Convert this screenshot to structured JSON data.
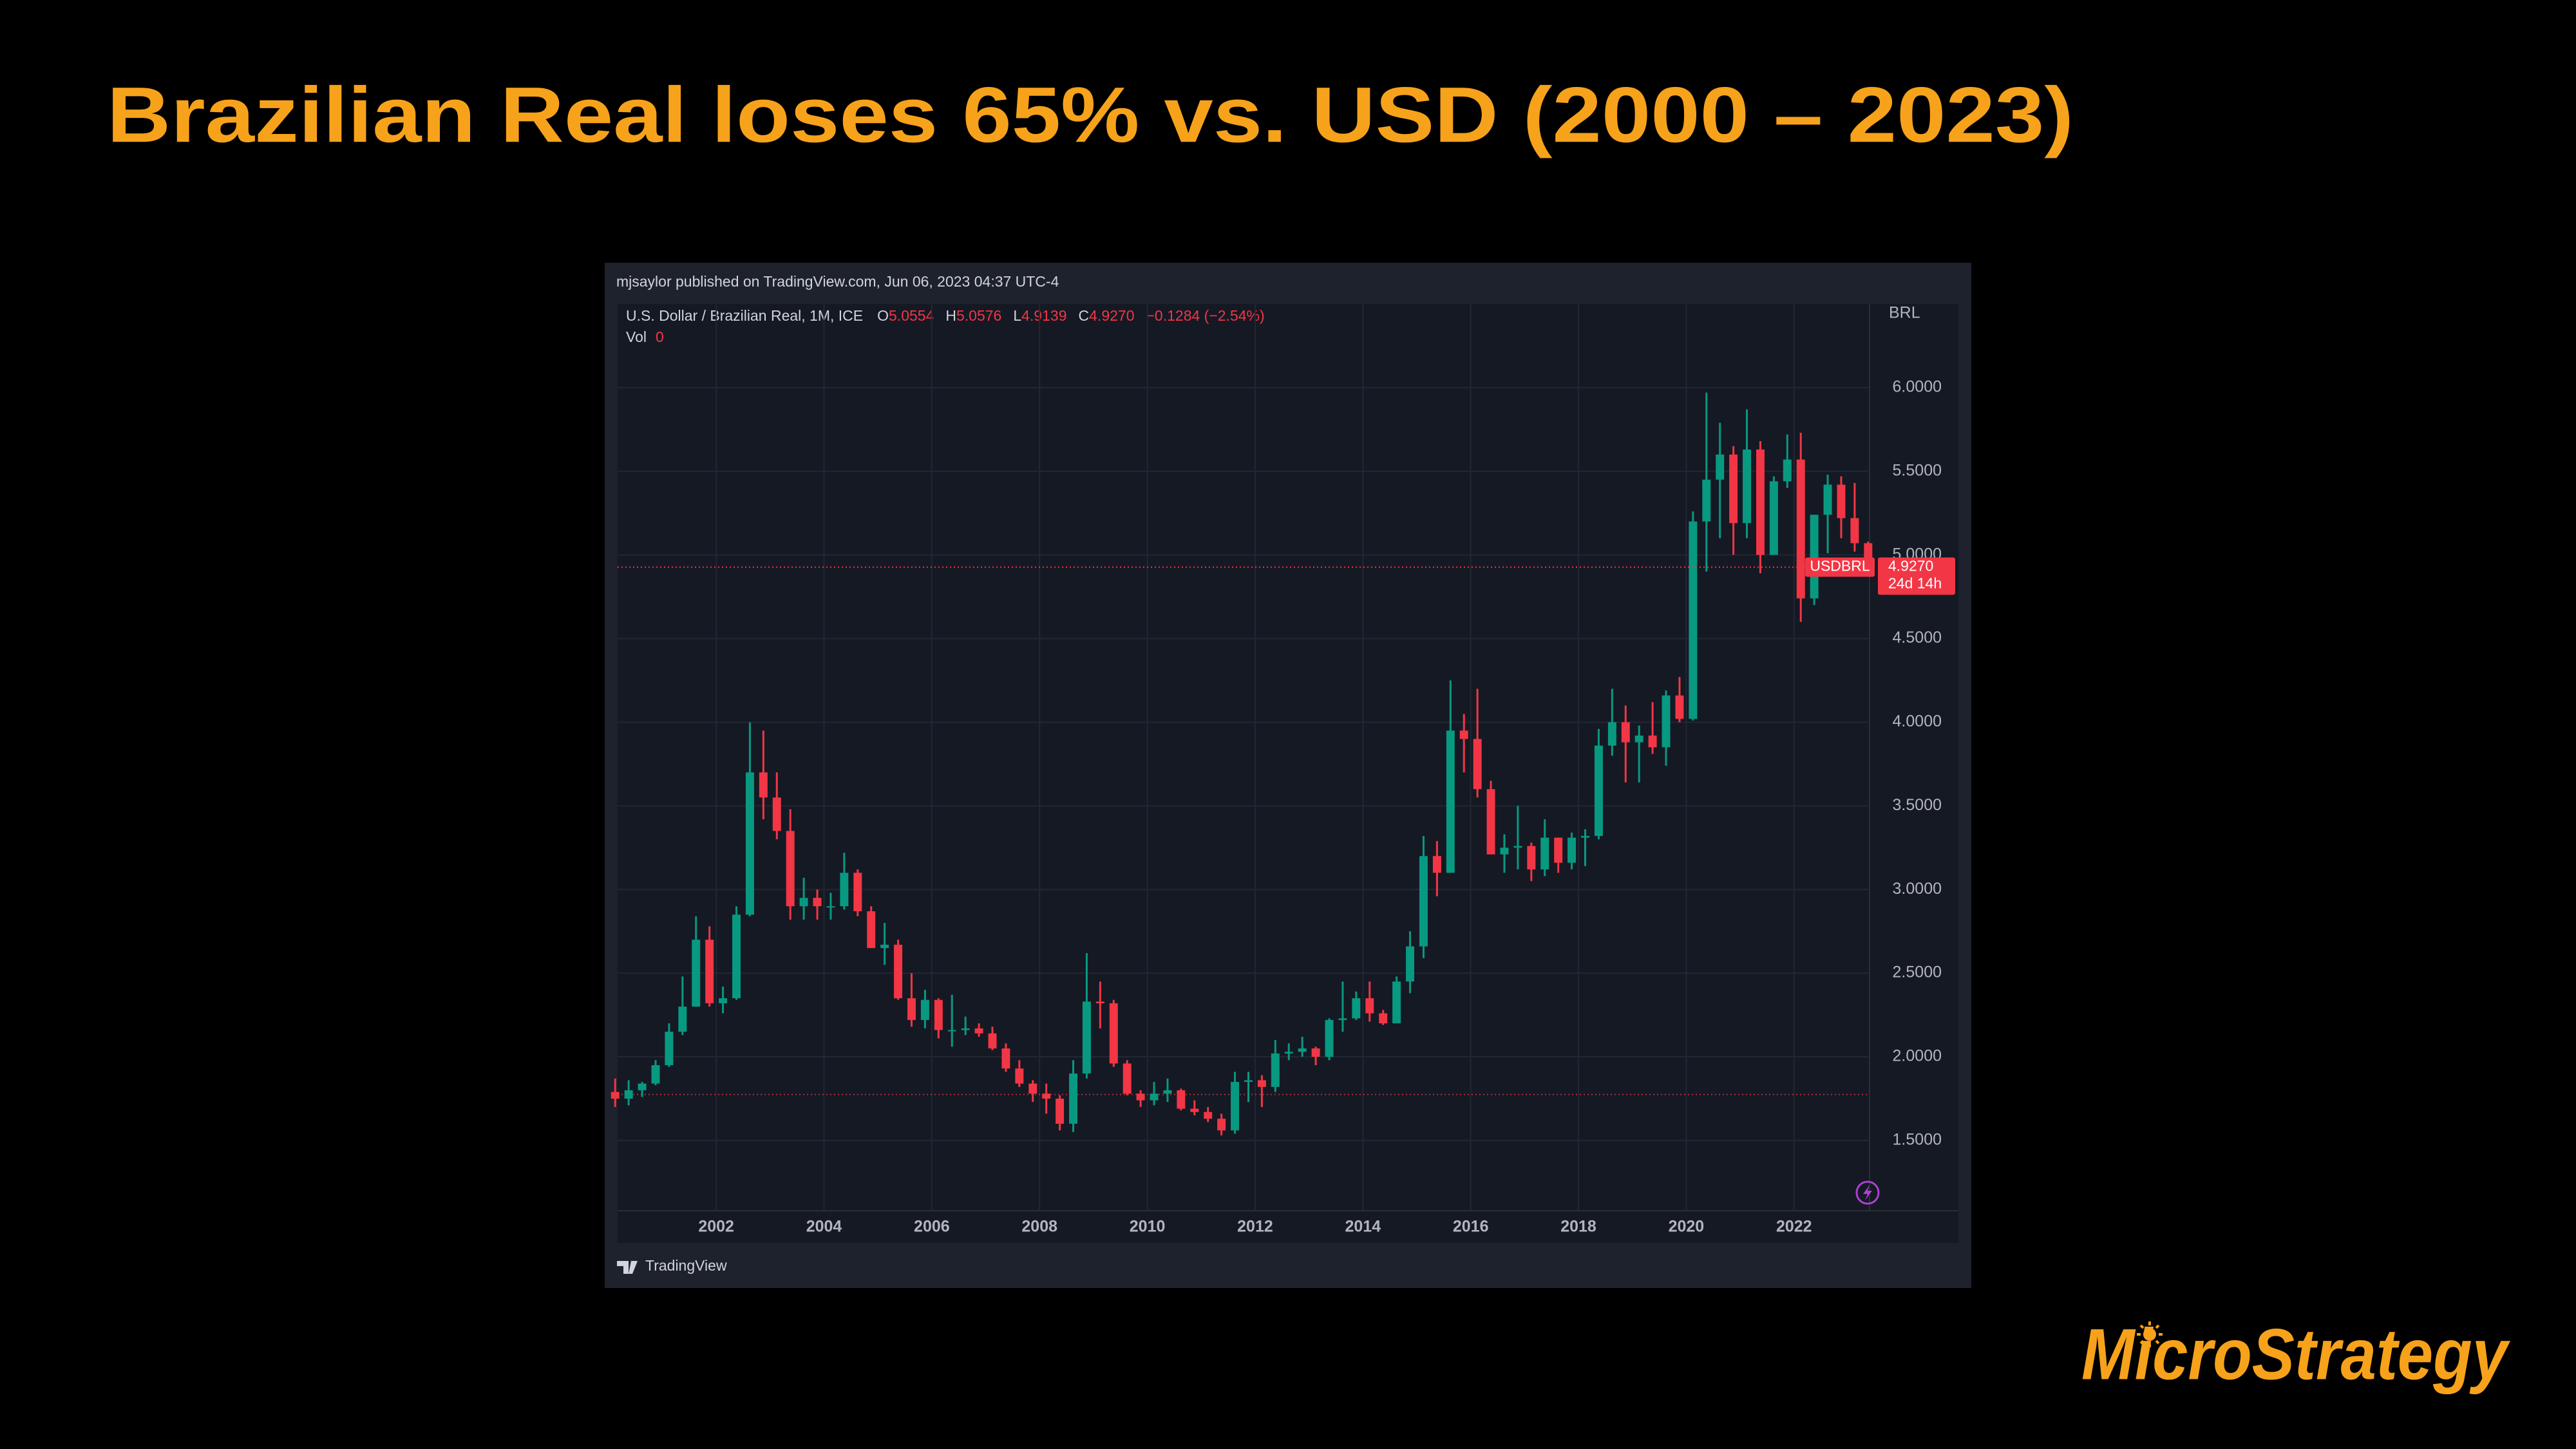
{
  "chart_data": {
    "type": "candlestick",
    "title": "Brazilian Real loses 65% vs. USD (2000 – 2023)",
    "attribution": "mjsaylor published on TradingView.com, Jun 06, 2023 04:37 UTC-4",
    "instrument": "U.S. Dollar / Brazilian Real, 1M, ICE",
    "ohlc_legend": [
      {
        "label": "O",
        "value": "5.0554"
      },
      {
        "label": "H",
        "value": "5.0576"
      },
      {
        "label": "L",
        "value": "4.9139"
      },
      {
        "label": "C",
        "value": "4.9270"
      }
    ],
    "change": "−0.1284 (−2.54%)",
    "volume_label": "Vol",
    "volume": "0",
    "currency": "BRL",
    "symbol": "USDBRL",
    "last_price": 4.927,
    "last_price_label": "4.9270",
    "countdown": "24d 14h",
    "reference_line": 1.775,
    "brand": "TradingView",
    "up_color": "#089981",
    "down_color": "#f23645",
    "x": [
      2000.125,
      2000.375,
      2000.625,
      2000.875,
      2001.125,
      2001.375,
      2001.625,
      2001.875,
      2002.125,
      2002.375,
      2002.625,
      2002.875,
      2003.125,
      2003.375,
      2003.625,
      2003.875,
      2004.125,
      2004.375,
      2004.625,
      2004.875,
      2005.125,
      2005.375,
      2005.625,
      2005.875,
      2006.125,
      2006.375,
      2006.625,
      2006.875,
      2007.125,
      2007.375,
      2007.625,
      2007.875,
      2008.125,
      2008.375,
      2008.625,
      2008.875,
      2009.125,
      2009.375,
      2009.625,
      2009.875,
      2010.125,
      2010.375,
      2010.625,
      2010.875,
      2011.125,
      2011.375,
      2011.625,
      2011.875,
      2012.125,
      2012.375,
      2012.625,
      2012.875,
      2013.125,
      2013.375,
      2013.625,
      2013.875,
      2014.125,
      2014.375,
      2014.625,
      2014.875,
      2015.125,
      2015.375,
      2015.625,
      2015.875,
      2016.125,
      2016.375,
      2016.625,
      2016.875,
      2017.125,
      2017.375,
      2017.625,
      2017.875,
      2018.125,
      2018.375,
      2018.625,
      2018.875,
      2019.125,
      2019.375,
      2019.625,
      2019.875,
      2020.125,
      2020.375,
      2020.625,
      2020.875,
      2021.125,
      2021.375,
      2021.625,
      2021.875,
      2022.125,
      2022.375,
      2022.625,
      2022.875,
      2023.125,
      2023.375
    ],
    "open": [
      1.79,
      1.75,
      1.8,
      1.84,
      1.95,
      2.15,
      2.3,
      2.7,
      2.32,
      2.35,
      2.85,
      3.7,
      3.55,
      3.35,
      2.9,
      2.95,
      2.9,
      2.9,
      3.1,
      2.87,
      2.65,
      2.67,
      2.35,
      2.22,
      2.34,
      2.16,
      2.16,
      2.17,
      2.14,
      2.05,
      1.93,
      1.84,
      1.78,
      1.75,
      1.6,
      1.9,
      2.33,
      2.32,
      1.96,
      1.78,
      1.74,
      1.78,
      1.8,
      1.69,
      1.67,
      1.63,
      1.56,
      1.85,
      1.86,
      1.82,
      2.02,
      2.03,
      2.05,
      2.0,
      2.22,
      2.23,
      2.35,
      2.26,
      2.2,
      2.45,
      2.66,
      3.2,
      3.1,
      3.95,
      3.9,
      3.6,
      3.21,
      3.25,
      3.26,
      3.12,
      3.31,
      3.16,
      3.31,
      3.32,
      3.86,
      4.0,
      3.88,
      3.92,
      3.85,
      4.16,
      4.02,
      5.2,
      5.45,
      5.6,
      5.19,
      5.63,
      5.0,
      5.44,
      5.57,
      4.74,
      5.24,
      5.42,
      5.22,
      5.07
    ],
    "high": [
      1.87,
      1.86,
      1.85,
      1.98,
      2.2,
      2.48,
      2.84,
      2.78,
      2.42,
      2.9,
      4.0,
      3.95,
      3.7,
      3.48,
      3.07,
      3.0,
      2.98,
      3.22,
      3.12,
      2.9,
      2.8,
      2.7,
      2.5,
      2.4,
      2.35,
      2.37,
      2.24,
      2.2,
      2.18,
      2.08,
      1.98,
      1.86,
      1.84,
      1.77,
      1.98,
      2.62,
      2.45,
      2.34,
      1.98,
      1.8,
      1.85,
      1.87,
      1.81,
      1.74,
      1.7,
      1.66,
      1.91,
      1.91,
      1.89,
      2.1,
      2.08,
      2.12,
      2.06,
      2.23,
      2.45,
      2.39,
      2.45,
      2.28,
      2.48,
      2.75,
      3.32,
      3.29,
      4.25,
      4.05,
      4.2,
      3.65,
      3.33,
      3.5,
      3.28,
      3.42,
      3.31,
      3.34,
      3.36,
      3.96,
      4.2,
      4.1,
      3.98,
      4.12,
      4.19,
      4.27,
      5.26,
      5.97,
      5.79,
      5.65,
      5.87,
      5.68,
      5.47,
      5.72,
      5.73,
      5.24,
      5.48,
      5.47,
      5.43,
      5.08
    ],
    "low": [
      1.7,
      1.71,
      1.76,
      1.83,
      1.94,
      2.13,
      2.3,
      2.3,
      2.26,
      2.34,
      2.84,
      3.42,
      3.3,
      2.82,
      2.82,
      2.82,
      2.82,
      2.88,
      2.84,
      2.65,
      2.55,
      2.34,
      2.18,
      2.17,
      2.11,
      2.06,
      2.13,
      2.12,
      2.04,
      1.91,
      1.82,
      1.73,
      1.66,
      1.56,
      1.55,
      1.87,
      2.17,
      1.94,
      1.77,
      1.7,
      1.71,
      1.73,
      1.68,
      1.65,
      1.61,
      1.53,
      1.54,
      1.73,
      1.7,
      1.79,
      1.98,
      2.0,
      1.95,
      1.98,
      2.15,
      2.22,
      2.21,
      2.19,
      2.2,
      2.38,
      2.59,
      2.96,
      3.1,
      3.7,
      3.55,
      3.21,
      3.1,
      3.12,
      3.05,
      3.08,
      3.1,
      3.12,
      3.14,
      3.3,
      3.8,
      3.64,
      3.64,
      3.81,
      3.74,
      4.0,
      4.01,
      4.9,
      5.1,
      5.0,
      5.1,
      4.89,
      5.04,
      5.4,
      4.6,
      4.7,
      5.01,
      5.1,
      5.02,
      4.91
    ],
    "close": [
      1.75,
      1.8,
      1.84,
      1.95,
      2.15,
      2.3,
      2.7,
      2.32,
      2.35,
      2.85,
      3.7,
      3.55,
      3.35,
      2.9,
      2.95,
      2.9,
      2.9,
      3.1,
      2.87,
      2.65,
      2.67,
      2.35,
      2.22,
      2.34,
      2.16,
      2.16,
      2.17,
      2.14,
      2.05,
      1.93,
      1.84,
      1.78,
      1.75,
      1.6,
      1.9,
      2.33,
      2.32,
      1.96,
      1.78,
      1.74,
      1.78,
      1.8,
      1.69,
      1.67,
      1.63,
      1.56,
      1.85,
      1.86,
      1.82,
      2.02,
      2.03,
      2.05,
      2.0,
      2.22,
      2.23,
      2.35,
      2.26,
      2.2,
      2.45,
      2.66,
      3.2,
      3.1,
      3.95,
      3.9,
      3.6,
      3.21,
      3.25,
      3.26,
      3.12,
      3.31,
      3.16,
      3.31,
      3.32,
      3.86,
      4.0,
      3.88,
      3.92,
      3.85,
      4.16,
      4.02,
      5.2,
      5.45,
      5.6,
      5.19,
      5.63,
      5.0,
      5.44,
      5.57,
      4.74,
      5.24,
      5.42,
      5.22,
      5.07,
      4.93
    ],
    "xlim": [
      2000.17,
      2025.05
    ],
    "xticks": [
      2002,
      2004,
      2006,
      2008,
      2010,
      2012,
      2014,
      2016,
      2018,
      2020,
      2022
    ],
    "ylim": [
      1.08,
      6.5
    ],
    "yticks": [
      {
        "value": 1.5,
        "label": "1.5000"
      },
      {
        "value": 2,
        "label": "2.0000"
      },
      {
        "value": 2.5,
        "label": "2.5000"
      },
      {
        "value": 3,
        "label": "3.0000"
      },
      {
        "value": 3.5,
        "label": "3.5000"
      },
      {
        "value": 4,
        "label": "4.0000"
      },
      {
        "value": 4.5,
        "label": "4.5000"
      },
      {
        "value": 5,
        "label": "5.0000"
      },
      {
        "value": 5.5,
        "label": "5.5000"
      },
      {
        "value": 6,
        "label": "6.0000"
      }
    ],
    "grid": true
  },
  "logo": "MicroStrategy"
}
